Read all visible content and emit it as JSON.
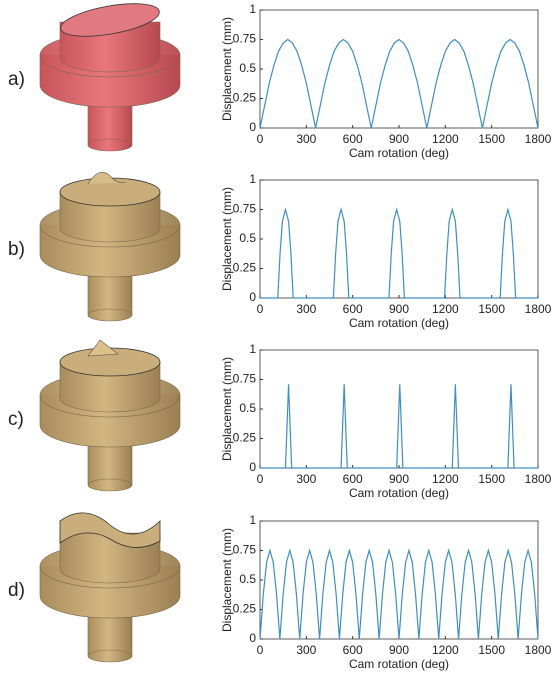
{
  "chart_data": [
    {
      "type": "line",
      "label": "a)",
      "x_label": "Cam rotation (deg)",
      "y_label": "Displacement (mm)",
      "xlim": [
        0,
        1800
      ],
      "ylim": [
        0,
        1
      ],
      "xticks": [
        0,
        300,
        600,
        900,
        1200,
        1500,
        1800
      ],
      "yticks": [
        0,
        0.25,
        0.5,
        0.75,
        1
      ],
      "series": [
        {
          "color": "#3d8fc6",
          "x": [
            0,
            30,
            60,
            90,
            120,
            150,
            180,
            210,
            240,
            270,
            300,
            330,
            360,
            390,
            420,
            450,
            480,
            510,
            540,
            570,
            600,
            630,
            660,
            690,
            720,
            750,
            780,
            810,
            840,
            870,
            900,
            930,
            960,
            990,
            1020,
            1050,
            1080,
            1110,
            1140,
            1170,
            1200,
            1230,
            1260,
            1290,
            1320,
            1350,
            1380,
            1410,
            1440,
            1470,
            1500,
            1530,
            1560,
            1590,
            1620,
            1650,
            1680,
            1710,
            1740,
            1770,
            1800
          ],
          "values": [
            0,
            0.19,
            0.38,
            0.53,
            0.65,
            0.72,
            0.75,
            0.72,
            0.65,
            0.53,
            0.38,
            0.19,
            0,
            0.19,
            0.38,
            0.53,
            0.65,
            0.72,
            0.75,
            0.72,
            0.65,
            0.53,
            0.38,
            0.19,
            0,
            0.19,
            0.38,
            0.53,
            0.65,
            0.72,
            0.75,
            0.72,
            0.65,
            0.53,
            0.38,
            0.19,
            0,
            0.19,
            0.38,
            0.53,
            0.65,
            0.72,
            0.75,
            0.72,
            0.65,
            0.53,
            0.38,
            0.19,
            0,
            0.19,
            0.38,
            0.53,
            0.65,
            0.72,
            0.75,
            0.72,
            0.65,
            0.53,
            0.38,
            0.19,
            0
          ]
        }
      ]
    },
    {
      "type": "line",
      "label": "b)",
      "x_label": "Cam rotation (deg)",
      "y_label": "Displacement (mm)",
      "xlim": [
        0,
        1800
      ],
      "ylim": [
        0,
        1
      ],
      "xticks": [
        0,
        300,
        600,
        900,
        1200,
        1500,
        1800
      ],
      "yticks": [
        0,
        0.25,
        0.5,
        0.75,
        1
      ],
      "series": [
        {
          "color": "#3d8fc6",
          "x": [
            0,
            115,
            130,
            145,
            165,
            185,
            200,
            215,
            475,
            490,
            505,
            525,
            545,
            560,
            575,
            835,
            850,
            865,
            885,
            905,
            920,
            935,
            1195,
            1210,
            1225,
            1245,
            1265,
            1280,
            1295,
            1555,
            1570,
            1585,
            1605,
            1625,
            1640,
            1655,
            1800
          ],
          "values": [
            0,
            0,
            0.38,
            0.65,
            0.75,
            0.65,
            0.38,
            0,
            0,
            0.38,
            0.65,
            0.75,
            0.65,
            0.38,
            0,
            0,
            0.38,
            0.65,
            0.75,
            0.65,
            0.38,
            0,
            0,
            0.38,
            0.65,
            0.75,
            0.65,
            0.38,
            0,
            0,
            0.38,
            0.65,
            0.75,
            0.65,
            0.38,
            0,
            0
          ]
        }
      ]
    },
    {
      "type": "line",
      "label": "c)",
      "x_label": "Cam rotation (deg)",
      "y_label": "Displacement (mm)",
      "xlim": [
        0,
        1800
      ],
      "ylim": [
        0,
        1
      ],
      "xticks": [
        0,
        300,
        600,
        900,
        1200,
        1500,
        1800
      ],
      "yticks": [
        0,
        0.25,
        0.5,
        0.75,
        1
      ],
      "series": [
        {
          "color": "#3d8fc6",
          "x": [
            0,
            165,
            185,
            205,
            525,
            545,
            565,
            885,
            905,
            925,
            1245,
            1265,
            1285,
            1605,
            1625,
            1645,
            1800
          ],
          "values": [
            0,
            0,
            0.71,
            0,
            0,
            0.71,
            0,
            0,
            0.71,
            0,
            0,
            0.71,
            0,
            0,
            0.71,
            0,
            0
          ]
        }
      ]
    },
    {
      "type": "line",
      "label": "d)",
      "x_label": "Cam rotation (deg)",
      "y_label": "Displacement (mm)",
      "xlim": [
        0,
        1800
      ],
      "ylim": [
        0,
        1
      ],
      "xticks": [
        0,
        300,
        600,
        900,
        1200,
        1500,
        1800
      ],
      "yticks": [
        0,
        0.25,
        0.5,
        0.75,
        1
      ],
      "series": [
        {
          "color": "#3d8fc6",
          "x": [
            0,
            21.4,
            42.9,
            64.3,
            85.7,
            107.1,
            128.6,
            150,
            171.4,
            192.9,
            214.3,
            235.7,
            257.1,
            278.6,
            300,
            321.4,
            342.9,
            364.3,
            385.7,
            407.1,
            428.6,
            450,
            471.4,
            492.9,
            514.3,
            535.7,
            557.1,
            578.6,
            600,
            621.4,
            642.9,
            664.3,
            685.7,
            707.1,
            728.6,
            750,
            771.4,
            792.9,
            814.3,
            835.7,
            857.1,
            878.6,
            900,
            921.4,
            942.9,
            964.3,
            985.7,
            1007.1,
            1028.6,
            1050,
            1071.4,
            1092.9,
            1114.3,
            1135.7,
            1157.1,
            1178.6,
            1200,
            1221.4,
            1242.9,
            1264.3,
            1285.7,
            1307.1,
            1328.6,
            1350,
            1371.4,
            1392.9,
            1414.3,
            1435.7,
            1457.1,
            1478.6,
            1500,
            1521.4,
            1542.9,
            1564.3,
            1585.7,
            1607.1,
            1628.6,
            1650,
            1671.4,
            1692.9,
            1714.3,
            1735.7,
            1757.1,
            1778.6,
            1800
          ],
          "values": [
            0,
            0.38,
            0.65,
            0.75,
            0.65,
            0.38,
            0,
            0.38,
            0.65,
            0.75,
            0.65,
            0.38,
            0,
            0.38,
            0.65,
            0.75,
            0.65,
            0.38,
            0,
            0.38,
            0.65,
            0.75,
            0.65,
            0.38,
            0,
            0.38,
            0.65,
            0.75,
            0.65,
            0.38,
            0,
            0.38,
            0.65,
            0.75,
            0.65,
            0.38,
            0,
            0.38,
            0.65,
            0.75,
            0.65,
            0.38,
            0,
            0.38,
            0.65,
            0.75,
            0.65,
            0.38,
            0,
            0.38,
            0.65,
            0.75,
            0.65,
            0.38,
            0,
            0.38,
            0.65,
            0.75,
            0.65,
            0.38,
            0,
            0.38,
            0.65,
            0.75,
            0.65,
            0.38,
            0,
            0.38,
            0.65,
            0.75,
            0.65,
            0.38,
            0,
            0.38,
            0.65,
            0.75,
            0.65,
            0.38,
            0,
            0.38,
            0.65,
            0.75,
            0.65,
            0.38,
            0
          ]
        }
      ]
    }
  ]
}
